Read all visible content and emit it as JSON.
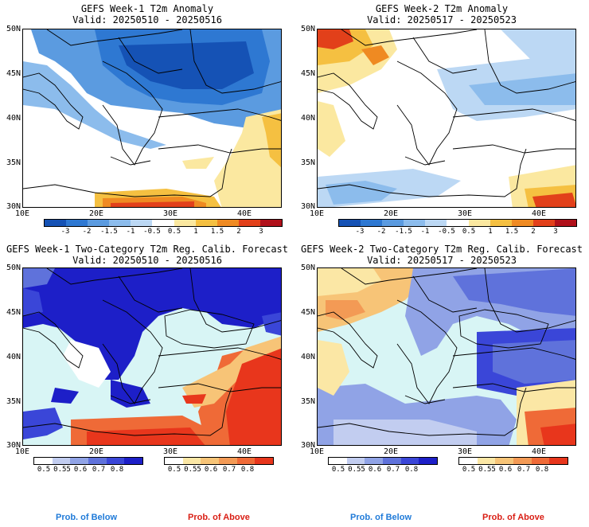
{
  "panels": [
    {
      "title": "GEFS Week-1 T2m Anomaly",
      "valid": "Valid: 20250510 - 20250516",
      "map_type": "anomaly"
    },
    {
      "title": "GEFS Week-2 T2m Anomaly",
      "valid": "Valid: 20250517 - 20250523",
      "map_type": "anomaly"
    },
    {
      "title": "GEFS Week-1 Two-Category T2m Reg. Calib. Forecast",
      "valid": "Valid: 20250510 - 20250516",
      "map_type": "probability"
    },
    {
      "title": "GEFS Week-2 Two-Category T2m Reg. Calib. Forecast",
      "valid": "Valid: 20250517 - 20250523",
      "map_type": "probability"
    }
  ],
  "lat_labels": [
    "50N",
    "45N",
    "40N",
    "35N",
    "30N"
  ],
  "lon_labels": [
    "10E",
    "20E",
    "30E",
    "40E"
  ],
  "anomaly_scale": {
    "ticks": [
      "-3",
      "-2",
      "-1.5",
      "-1",
      "-0.5",
      "0.5",
      "1",
      "1.5",
      "2",
      "3"
    ],
    "colors": [
      "#1552b5",
      "#2e78d2",
      "#5b9be0",
      "#8cbcec",
      "#bcd8f4",
      "#ffffff",
      "#fbe8a0",
      "#f5c041",
      "#ef8a22",
      "#e2401a",
      "#b0101a"
    ]
  },
  "prob_below": {
    "ticks": [
      "0.5",
      "0.55",
      "0.6",
      "0.7",
      "0.8"
    ],
    "colors": [
      "#ffffff",
      "#c2cdf0",
      "#90a3e6",
      "#5f72db",
      "#3a46d8",
      "#1d1fc8"
    ]
  },
  "prob_above": {
    "ticks": [
      "0.5",
      "0.55",
      "0.6",
      "0.7",
      "0.8"
    ],
    "colors": [
      "#ffffff",
      "#fbe7a5",
      "#f7c477",
      "#f39a55",
      "#ef6a37",
      "#e8361c"
    ]
  },
  "labels": {
    "below": "Prob. of Below",
    "above": "Prob. of Above"
  },
  "colors": {
    "below_label": "#1f7ad8",
    "above_label": "#d91e14",
    "sea_light": "#d8f5f5"
  }
}
